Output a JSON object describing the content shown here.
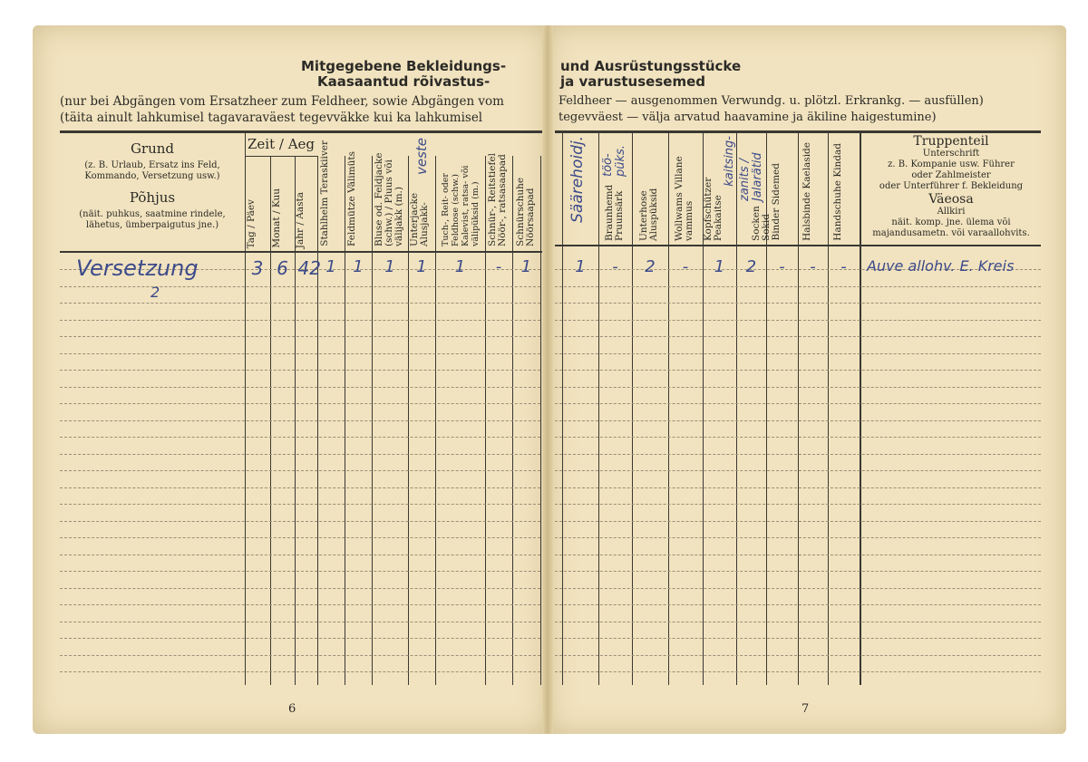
{
  "left_page": {
    "title_de": "Mitgegebene Bekleidungs-",
    "title_et": "Kaasaantud rõivastus-",
    "sub_de": "(nur bei Abgängen vom Ersatzheer zum Feldheer, sowie Abgängen vom",
    "sub_et": "(täita ainult lahkumisel tagavaraväest tegevväkke kui ka lahkumisel",
    "grund": {
      "title_de": "Grund",
      "desc_de": "(z. B. Urlaub, Ersatz ins Feld, Kommando, Versetzung usw.)",
      "title_et": "Põhjus",
      "desc_et": "(näit. puhkus, saatmine rindele, lähetus, ümberpaigutus jne.)"
    },
    "zeit": "Zeit / Aeg",
    "columns": [
      "Tag / Päev",
      "Monat / Kuu",
      "Jahr / Aasta",
      "Stahlhelm Teraskiiver",
      "Feldmütze Välimüts",
      "Bluse od. Feldjacke (schw.) / Pluus või välijakk (m.)",
      "Unterjacke Alusjakk-",
      "Tuch-, Reit- oder Feldhose (schw.) Kalevist, ratsa- või välipüksid (m.)",
      "Schnür-, Reitstiefel Nöör-, ratsasaapad",
      "Schnürschuhe Nöörsaapad"
    ],
    "annotation_veste": "veste",
    "row": {
      "grund": "Versetzung",
      "grund_mark": "2",
      "values": [
        "3",
        "6",
        "42",
        "1",
        "1",
        "1",
        "1",
        "1",
        "-",
        "1"
      ]
    },
    "page_number": "6"
  },
  "right_page": {
    "title_de": "und Ausrüstungsstücke",
    "title_et": "ja varustusesemed",
    "sub_de": "Feldheer — ausgenommen Verwundg. u. plötzl. Erkrankg. — ausfüllen)",
    "sub_et": "tegevväest — välja arvatud haavamine ja äkiline haigestumine)",
    "columns": [
      "Säärehoidj.",
      "Braunhemd Pruunsärk",
      "Unterhose Aluspüksid",
      "Wollwams Villane vammus",
      "Kopfschützer Peakaitse",
      "Socken Sokid",
      "Binder Sidemed",
      "Halsbinde Kaelaside",
      "Handschuhe Kindad"
    ],
    "col_annotations": [
      "töö-püks.",
      "",
      "",
      "",
      "kaitsing-",
      "zanits / Jalarätid"
    ],
    "truppenteil": {
      "l1": "Truppenteil",
      "l2": "Unterschrift",
      "l3": "z. B. Kompanie usw. Führer",
      "l4": "oder Zahlmeister",
      "l5": "oder Unterführer f. Bekleidung",
      "l6": "Väeosa",
      "l7": "Allkiri",
      "l8": "näit. komp. jne. ülema või majandusametn. või varaallohvits."
    },
    "row": {
      "values": [
        "1",
        "-",
        "2",
        "-",
        "1",
        "2",
        "-",
        "-",
        "-"
      ],
      "signature": "Auve allohv. E. Kreis"
    },
    "page_number": "7"
  }
}
